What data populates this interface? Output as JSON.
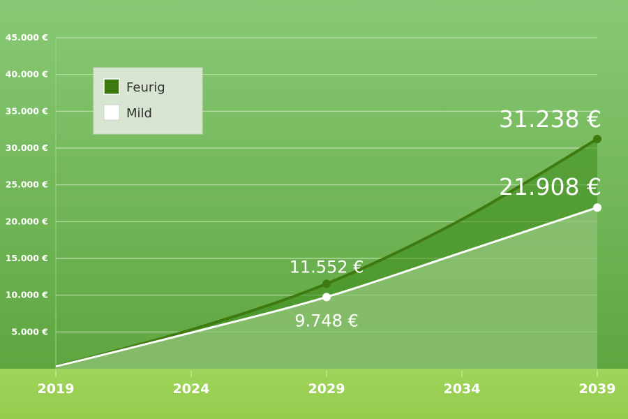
{
  "chart_data": {
    "type": "area",
    "x": [
      2019,
      2024,
      2029,
      2034,
      2039
    ],
    "x_ticks": [
      "2019",
      "2024",
      "2029",
      "2034",
      "2039"
    ],
    "y_ticks": [
      "5.000 €",
      "10.000 €",
      "15.000 €",
      "20.000 €",
      "25.000 €",
      "30.000 €",
      "35.000 €",
      "40.000 €",
      "45.000 €"
    ],
    "ylim": [
      0,
      45000
    ],
    "grid": true,
    "legend_position": "top-left",
    "series": [
      {
        "name": "Feurig",
        "color": "#3f7a10",
        "values": [
          300,
          5300,
          11552,
          20300,
          31238
        ],
        "marked_points": [
          {
            "x": 2029,
            "value": 11552,
            "label": "11.552 €"
          },
          {
            "x": 2039,
            "value": 31238,
            "label": "31.238 €"
          }
        ]
      },
      {
        "name": "Mild",
        "color": "#ffffff",
        "values": [
          300,
          4900,
          9748,
          15800,
          21908
        ],
        "marked_points": [
          {
            "x": 2029,
            "value": 9748,
            "label": "9.748 €"
          },
          {
            "x": 2039,
            "value": 21908,
            "label": "21.908 €"
          }
        ]
      }
    ]
  }
}
